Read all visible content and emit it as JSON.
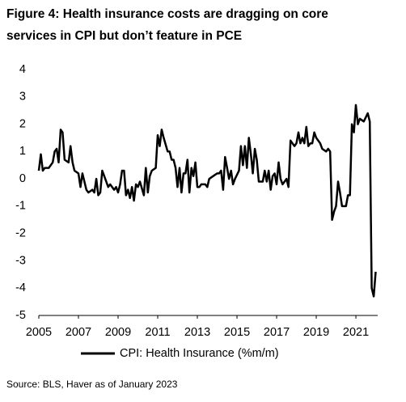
{
  "chart_data": {
    "type": "line",
    "title_lines": [
      "Figure 4: Health insurance costs are dragging on core",
      "services in CPI but don’t feature in PCE"
    ],
    "source": "Source: BLS, Haver as of January 2023",
    "x": [
      2005.0,
      2005.1,
      2005.2,
      2005.3,
      2005.5,
      2005.7,
      2005.8,
      2005.9,
      2006.0,
      2006.1,
      2006.2,
      2006.3,
      2006.5,
      2006.6,
      2006.7,
      2006.8,
      2007.0,
      2007.1,
      2007.2,
      2007.4,
      2007.5,
      2007.7,
      2007.8,
      2007.9,
      2008.0,
      2008.1,
      2008.2,
      2008.3,
      2008.5,
      2008.6,
      2008.8,
      2008.9,
      2009.0,
      2009.1,
      2009.2,
      2009.3,
      2009.4,
      2009.5,
      2009.6,
      2009.7,
      2009.8,
      2009.9,
      2010.0,
      2010.1,
      2010.3,
      2010.4,
      2010.5,
      2010.6,
      2010.7,
      2010.9,
      2011.0,
      2011.1,
      2011.2,
      2011.3,
      2011.5,
      2011.6,
      2011.7,
      2011.8,
      2011.9,
      2012.0,
      2012.1,
      2012.2,
      2012.3,
      2012.4,
      2012.5,
      2012.6,
      2012.7,
      2012.8,
      2012.9,
      2013.0,
      2013.1,
      2013.2,
      2013.4,
      2013.5,
      2013.6,
      2013.8,
      2014.0,
      2014.1,
      2014.2,
      2014.3,
      2014.4,
      2014.5,
      2014.6,
      2014.7,
      2014.8,
      2014.9,
      2015.1,
      2015.2,
      2015.3,
      2015.4,
      2015.5,
      2015.6,
      2015.7,
      2015.8,
      2015.9,
      2016.0,
      2016.1,
      2016.3,
      2016.4,
      2016.5,
      2016.6,
      2016.7,
      2016.8,
      2016.9,
      2017.0,
      2017.1,
      2017.2,
      2017.3,
      2017.5,
      2017.6,
      2017.7,
      2017.8,
      2017.9,
      2018.0,
      2018.1,
      2018.2,
      2018.3,
      2018.4,
      2018.5,
      2018.6,
      2018.7,
      2018.8,
      2018.9,
      2019.0,
      2019.2,
      2019.3,
      2019.5,
      2019.6,
      2019.7,
      2019.8,
      2019.9,
      2020.0,
      2020.1,
      2020.2,
      2020.3,
      2020.5,
      2020.6,
      2020.7,
      2020.8,
      2020.9,
      2021.0,
      2021.1,
      2021.2,
      2021.4,
      2021.6,
      2021.7,
      2021.8,
      2021.9,
      2022.0
    ],
    "series": [
      {
        "name": "CPI: Health Insurance (%m/m)",
        "color": "#000000",
        "values": [
          0.3,
          0.9,
          0.3,
          0.4,
          0.4,
          0.6,
          1.0,
          1.1,
          0.6,
          1.8,
          1.7,
          0.7,
          0.6,
          1.2,
          0.6,
          0.3,
          0.2,
          -0.3,
          0.2,
          -0.4,
          -0.5,
          -0.4,
          -0.5,
          0.0,
          -0.6,
          -0.5,
          0.3,
          0.1,
          -0.3,
          -0.2,
          -0.4,
          -0.3,
          -0.5,
          -0.2,
          0.3,
          0.3,
          -0.6,
          -0.4,
          -0.7,
          -0.3,
          -0.8,
          -0.2,
          -0.3,
          -0.1,
          -0.6,
          0.4,
          -0.5,
          0.1,
          0.3,
          0.4,
          1.6,
          1.2,
          1.8,
          1.5,
          1.0,
          1.0,
          0.7,
          0.7,
          0.4,
          -0.3,
          0.4,
          -0.5,
          0.2,
          0.2,
          0.7,
          -0.5,
          0.4,
          0.1,
          0.6,
          -0.3,
          -0.3,
          -0.2,
          -0.2,
          -0.3,
          0.0,
          0.1,
          0.2,
          0.2,
          0.3,
          -0.4,
          0.8,
          0.4,
          0.0,
          0.3,
          -0.2,
          0.0,
          0.3,
          1.2,
          0.5,
          1.2,
          0.4,
          1.5,
          0.9,
          0.2,
          1.1,
          0.7,
          -0.1,
          -0.1,
          0.3,
          -0.1,
          0.3,
          -0.4,
          0.1,
          0.2,
          -0.2,
          0.6,
          0.0,
          -0.2,
          0.0,
          -0.3,
          1.4,
          1.3,
          1.2,
          1.3,
          1.7,
          1.3,
          1.5,
          1.3,
          1.9,
          1.2,
          1.3,
          1.3,
          1.7,
          1.5,
          1.3,
          1.1,
          1.0,
          1.1,
          1.0,
          -1.5,
          -1.2,
          -1.0,
          -0.1,
          -0.5,
          -1.0,
          -1.0,
          -0.6,
          -0.6,
          2.0,
          1.7,
          2.7,
          2.0,
          2.2,
          2.1,
          2.4,
          2.1,
          -4.0,
          -4.3,
          -3.4
        ]
      }
    ],
    "xlim": [
      2005,
      2022.1
    ],
    "xticks": [
      2005,
      2007,
      2009,
      2011,
      2013,
      2015,
      2017,
      2019,
      2021
    ],
    "ylim": [
      -5,
      4
    ],
    "yticks": [
      -5,
      -4,
      -3,
      -2,
      -1,
      0,
      1,
      2,
      3,
      4
    ]
  }
}
